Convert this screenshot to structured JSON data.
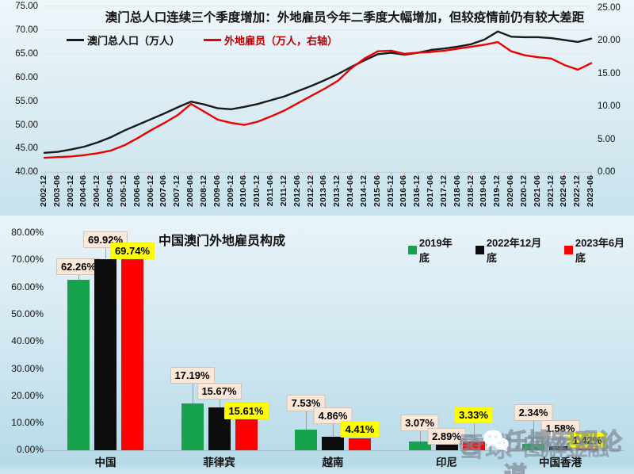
{
  "watermark": {
    "brand": "雪球",
    "separator": "·",
    "channel": "图解金融",
    "overlay": "任博宏观论道"
  },
  "chart_data": [
    {
      "type": "line",
      "title": "澳门总人口连续三个季度增加：外地雇员今年二季度大幅增加，但较疫情前仍有较大差距",
      "grid": "horizontal",
      "legend_position": "top-left-inside",
      "x": [
        "2002-12",
        "2003-06",
        "2003-12",
        "2004-06",
        "2004-12",
        "2005-06",
        "2005-12",
        "2006-06",
        "2006-12",
        "2007-06",
        "2007-12",
        "2008-06",
        "2008-12",
        "2009-06",
        "2009-12",
        "2010-06",
        "2010-12",
        "2011-06",
        "2011-12",
        "2012-06",
        "2012-12",
        "2013-06",
        "2013-12",
        "2014-06",
        "2014-12",
        "2015-06",
        "2015-12",
        "2016-06",
        "2016-12",
        "2017-06",
        "2017-12",
        "2018-06",
        "2018-12",
        "2019-06",
        "2019-12",
        "2020-06",
        "2020-12",
        "2021-06",
        "2021-12",
        "2022-06",
        "2022-12",
        "2023-06"
      ],
      "left_axis": {
        "min": 40,
        "max": 75,
        "ticks": [
          "75.00",
          "70.00",
          "65.00",
          "60.00",
          "55.00",
          "50.00",
          "45.00",
          "40.00"
        ]
      },
      "right_axis": {
        "min": 0,
        "max": 25,
        "ticks": [
          "25.00",
          "20.00",
          "15.00",
          "10.00",
          "5.00",
          "0.00"
        ]
      },
      "series": [
        {
          "name": "澳门总人口（万人）",
          "axis": "left",
          "color": "#1a1a1a",
          "label_color": "#111111",
          "values": [
            44.1,
            44.3,
            44.8,
            45.4,
            46.3,
            47.4,
            48.8,
            50.0,
            51.2,
            52.4,
            53.7,
            54.9,
            54.3,
            53.5,
            53.3,
            53.8,
            54.4,
            55.2,
            56.0,
            57.1,
            58.2,
            59.4,
            60.7,
            62.2,
            63.6,
            64.9,
            65.2,
            64.8,
            65.2,
            65.8,
            66.1,
            66.5,
            67.0,
            68.0,
            69.7,
            68.6,
            68.5,
            68.5,
            68.3,
            67.9,
            67.5,
            68.2
          ]
        },
        {
          "name": "外地雇员（万人，右轴）",
          "axis": "right",
          "color": "#ef0000",
          "label_color": "#b00000",
          "values": [
            2.2,
            2.3,
            2.4,
            2.6,
            2.9,
            3.3,
            4.1,
            5.2,
            6.4,
            7.5,
            8.7,
            10.4,
            9.2,
            8.0,
            7.5,
            7.2,
            7.7,
            8.5,
            9.4,
            10.5,
            11.6,
            12.7,
            13.9,
            15.8,
            17.3,
            18.4,
            18.5,
            18.0,
            18.2,
            18.3,
            18.5,
            18.8,
            19.1,
            19.4,
            19.8,
            18.4,
            17.8,
            17.5,
            17.3,
            16.3,
            15.6,
            16.6
          ]
        }
      ]
    },
    {
      "type": "bar",
      "title": "中国澳门外地雇员构成",
      "categories": [
        "中国",
        "菲律宾",
        "越南",
        "印尼",
        "中国香港"
      ],
      "y_axis": {
        "min": 0,
        "max": 80,
        "ticks": [
          "80.00%",
          "70.00%",
          "60.00%",
          "50.00%",
          "40.00%",
          "30.00%",
          "20.00%",
          "10.00%",
          "0.00%"
        ]
      },
      "series": [
        {
          "name": "2019年底",
          "color": "#17a24e",
          "values": [
            62.26,
            17.19,
            7.53,
            3.07,
            2.34
          ]
        },
        {
          "name": "2022年12月底",
          "color": "#0d0d0d",
          "values": [
            69.92,
            15.67,
            4.86,
            2.89,
            1.58
          ]
        },
        {
          "name": "2023年6月底",
          "color": "#fe0000",
          "values": [
            69.74,
            15.61,
            4.41,
            3.33,
            1.42
          ]
        }
      ],
      "value_label_suffix": "%",
      "label_bg": {
        "default": "#fce8d9",
        "last_series": "#ffff00"
      }
    }
  ]
}
